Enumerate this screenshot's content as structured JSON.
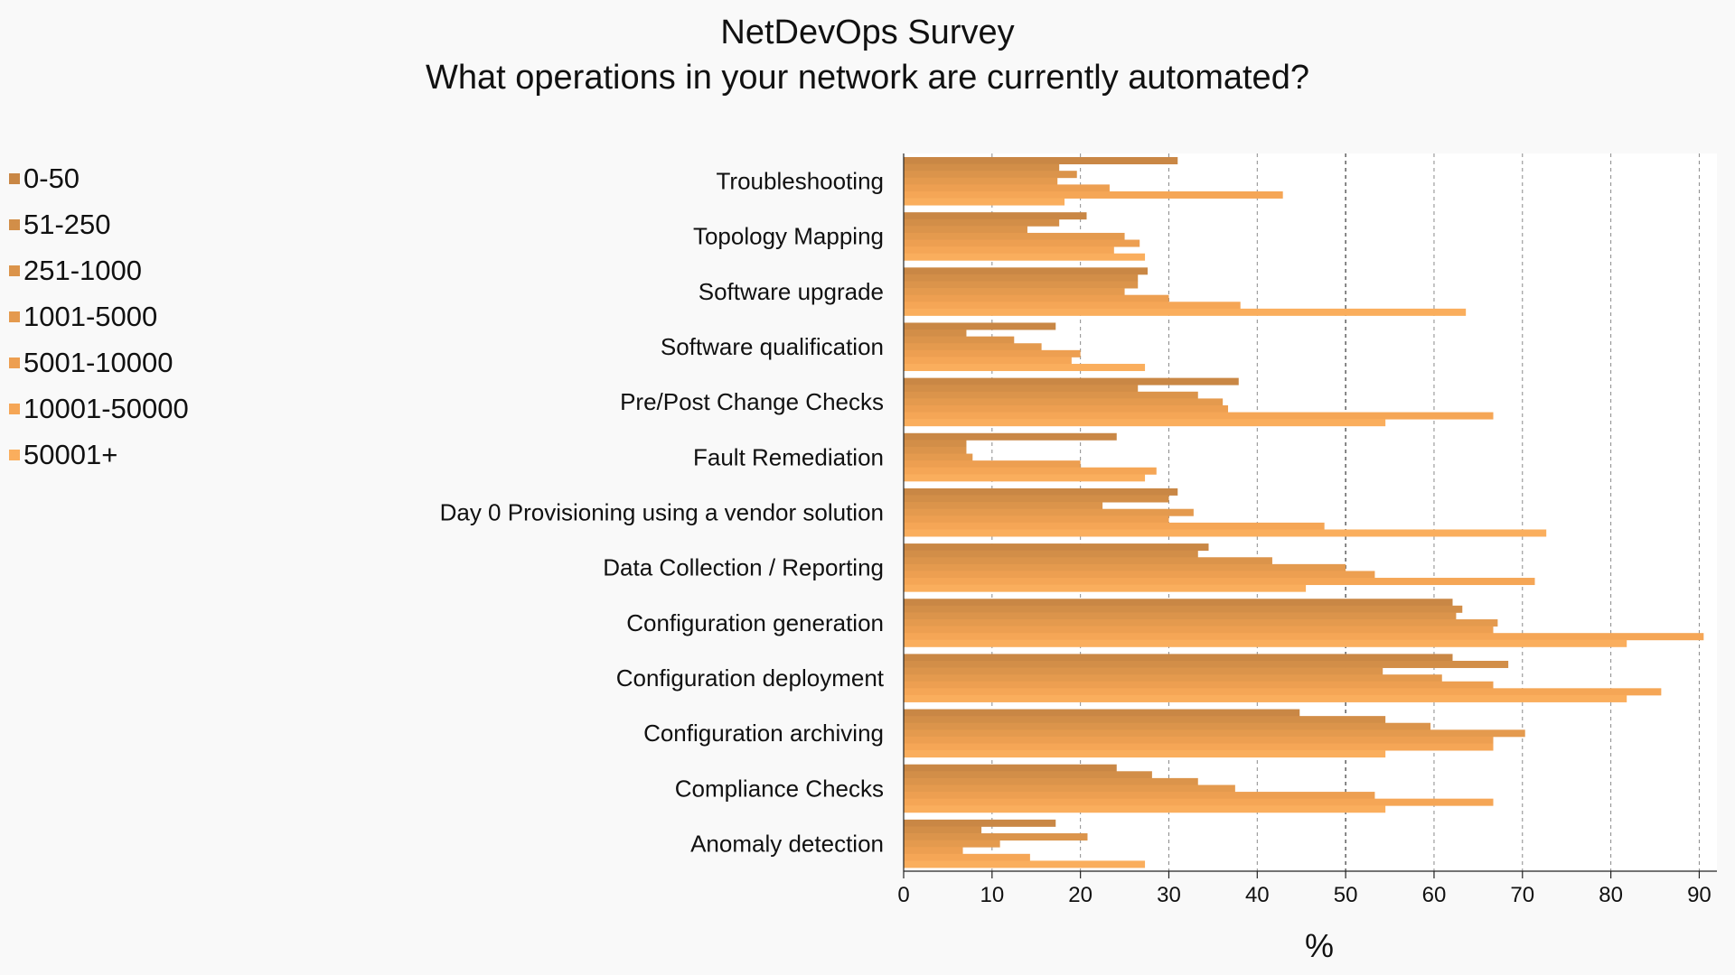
{
  "chart_data": {
    "type": "bar",
    "orientation": "horizontal",
    "title": "NetDevOps Survey",
    "subtitle": "What operations in your network are currently automated?",
    "xlabel": "%",
    "ylabel": "",
    "xlim": [
      0,
      92
    ],
    "x_ticks": [
      "0",
      "10",
      "20",
      "30",
      "40",
      "50",
      "60",
      "70",
      "80",
      "90"
    ],
    "grid": true,
    "legend_position": "left",
    "categories": [
      "Troubleshooting",
      "Topology Mapping",
      "Software upgrade",
      "Software qualification",
      "Pre/Post Change Checks",
      "Fault Remediation",
      "Day 0 Provisioning using a vendor solution",
      "Data Collection / Reporting",
      "Configuration generation",
      "Configuration deployment",
      "Configuration archiving",
      "Compliance Checks",
      "Anomaly detection"
    ],
    "series": [
      {
        "name": "0-50",
        "color": "#c98745",
        "values": [
          31,
          20.7,
          27.6,
          17.2,
          37.9,
          24.1,
          31,
          34.5,
          62.1,
          62.1,
          44.8,
          24.1,
          17.2
        ]
      },
      {
        "name": "51-250",
        "color": "#d28e48",
        "values": [
          17.6,
          17.6,
          26.5,
          7.1,
          26.5,
          7.1,
          30,
          33.3,
          63.2,
          68.4,
          54.5,
          28.1,
          8.8
        ]
      },
      {
        "name": "251-1000",
        "color": "#db944b",
        "values": [
          19.6,
          14,
          26.5,
          12.5,
          33.3,
          7.1,
          22.5,
          41.7,
          62.5,
          54.2,
          59.6,
          33.3,
          20.8
        ]
      },
      {
        "name": "1001-5000",
        "color": "#e49a4e",
        "values": [
          17.4,
          25,
          25,
          15.6,
          36.1,
          7.8,
          32.8,
          50,
          67.2,
          60.9,
          70.3,
          37.5,
          10.9
        ]
      },
      {
        "name": "5001-10000",
        "color": "#ed9f51",
        "values": [
          23.3,
          26.7,
          30,
          20,
          36.7,
          20,
          30,
          53.3,
          66.7,
          66.7,
          66.7,
          53.3,
          6.7
        ]
      },
      {
        "name": "10001-50000",
        "color": "#f5a656",
        "values": [
          42.9,
          23.8,
          38.1,
          19,
          66.7,
          28.6,
          47.6,
          71.4,
          90.5,
          85.7,
          66.7,
          66.7,
          14.3
        ]
      },
      {
        "name": "50001+",
        "color": "#faae5d",
        "values": [
          18.2,
          27.3,
          63.6,
          27.3,
          54.5,
          27.3,
          72.7,
          45.5,
          81.8,
          81.8,
          54.5,
          54.5,
          27.3
        ]
      }
    ]
  }
}
